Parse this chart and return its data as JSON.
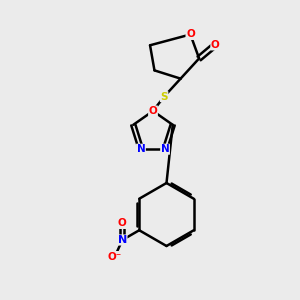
{
  "background_color": "#ebebeb",
  "bond_color": "#000000",
  "atom_colors": {
    "O": "#ff0000",
    "N": "#0000ff",
    "S": "#cccc00",
    "C": "#000000"
  },
  "figsize": [
    3.0,
    3.0
  ],
  "dpi": 100,
  "xlim": [
    0,
    10
  ],
  "ylim": [
    0,
    10
  ]
}
